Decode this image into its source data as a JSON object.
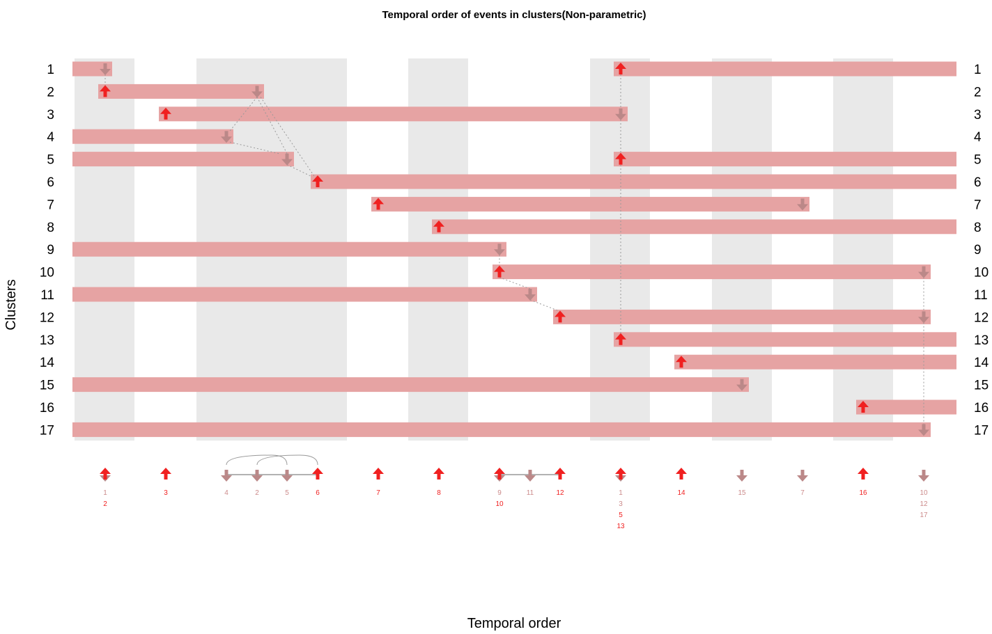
{
  "chart_data": {
    "type": "timeline",
    "title": "Temporal order of events in clusters(Non-parametric)",
    "xlabel": "Temporal order",
    "ylabel": "Clusters",
    "clusters": [
      "1",
      "2",
      "3",
      "4",
      "5",
      "6",
      "7",
      "8",
      "9",
      "10",
      "11",
      "12",
      "13",
      "14",
      "15",
      "16",
      "17"
    ],
    "columns": 15,
    "clusters_detail": [
      {
        "cluster": "1",
        "start": null,
        "end": 1,
        "start_col": 10,
        "end_col": null
      },
      {
        "cluster": "2",
        "start": 1,
        "end": 3,
        "start_col": 1,
        "end_col": 3
      },
      {
        "cluster": "3",
        "start": 2,
        "end": 10,
        "start_col": 2,
        "end_col": 10
      },
      {
        "cluster": "4",
        "start": null,
        "end": 3,
        "start_col": null,
        "end_col": 3
      },
      {
        "cluster": "5",
        "start": null,
        "end": 3,
        "start_col": 10,
        "end_col": null
      },
      {
        "cluster": "6",
        "start": 3,
        "end": null,
        "start_col": 3,
        "end_col": null
      },
      {
        "cluster": "7",
        "start": 4,
        "end": 13,
        "start_col": 4,
        "end_col": 13
      },
      {
        "cluster": "8",
        "start": 5,
        "end": null,
        "start_col": 5,
        "end_col": null
      },
      {
        "cluster": "9",
        "start": null,
        "end": 6,
        "start_col": null,
        "end_col": 6
      },
      {
        "cluster": "10",
        "start": 6,
        "end": 15,
        "start_col": 6,
        "end_col": 15
      },
      {
        "cluster": "11",
        "start": null,
        "end": 6,
        "start_col": null,
        "end_col": 6
      },
      {
        "cluster": "12",
        "start": 6,
        "end": 15,
        "start_col": 6,
        "end_col": 15
      },
      {
        "cluster": "13",
        "start": 7,
        "end": null,
        "start_col": 7,
        "end_col": null
      },
      {
        "cluster": "14",
        "start": 8,
        "end": null,
        "start_col": 8,
        "end_col": null
      },
      {
        "cluster": "15",
        "start": null,
        "end": 12,
        "start_col": null,
        "end_col": 12
      },
      {
        "cluster": "16",
        "start": 13,
        "end": null,
        "start_col": 13,
        "end_col": null
      },
      {
        "cluster": "17",
        "start": null,
        "end": 15,
        "start_col": null,
        "end_col": 15
      }
    ],
    "bottom_events": [
      {
        "col": 0,
        "up": true,
        "down": true,
        "labels": [
          {
            "t": "1",
            "c": "down"
          },
          {
            "t": "2",
            "c": "up"
          }
        ]
      },
      {
        "col": 1,
        "up": true,
        "down": false,
        "labels": [
          {
            "t": "3",
            "c": "up"
          }
        ]
      },
      {
        "col": 2,
        "up": false,
        "down": true,
        "labels": [
          {
            "t": "4",
            "c": "down"
          }
        ]
      },
      {
        "col": 2.5,
        "up": false,
        "down": true,
        "labels": [
          {
            "t": "2",
            "c": "down"
          }
        ]
      },
      {
        "col": 3,
        "up": false,
        "down": true,
        "labels": [
          {
            "t": "5",
            "c": "down"
          }
        ]
      },
      {
        "col": 3.5,
        "up": true,
        "down": false,
        "labels": [
          {
            "t": "6",
            "c": "up"
          }
        ]
      },
      {
        "col": 4.5,
        "up": true,
        "down": false,
        "labels": [
          {
            "t": "7",
            "c": "up"
          }
        ]
      },
      {
        "col": 5.5,
        "up": true,
        "down": false,
        "labels": [
          {
            "t": "8",
            "c": "up"
          }
        ]
      },
      {
        "col": 6.5,
        "up": true,
        "down": true,
        "labels": [
          {
            "t": "9",
            "c": "down"
          },
          {
            "t": "10",
            "c": "up"
          }
        ]
      },
      {
        "col": 7,
        "up": false,
        "down": true,
        "labels": [
          {
            "t": "11",
            "c": "down"
          }
        ]
      },
      {
        "col": 7.5,
        "up": true,
        "down": false,
        "labels": [
          {
            "t": "12",
            "c": "up"
          }
        ]
      },
      {
        "col": 8.5,
        "up": true,
        "down": true,
        "labels": [
          {
            "t": "1",
            "c": "down"
          },
          {
            "t": "3",
            "c": "down"
          },
          {
            "t": "5",
            "c": "up"
          },
          {
            "t": "13",
            "c": "up"
          }
        ]
      },
      {
        "col": 9.5,
        "up": true,
        "down": false,
        "labels": [
          {
            "t": "14",
            "c": "up"
          }
        ]
      },
      {
        "col": 10.5,
        "up": false,
        "down": true,
        "labels": [
          {
            "t": "15",
            "c": "down"
          }
        ]
      },
      {
        "col": 11.5,
        "up": false,
        "down": true,
        "labels": [
          {
            "t": "7",
            "c": "down"
          }
        ]
      },
      {
        "col": 12.5,
        "up": true,
        "down": false,
        "labels": [
          {
            "t": "16",
            "c": "up"
          }
        ]
      },
      {
        "col": 13.5,
        "up": false,
        "down": true,
        "labels": [
          {
            "t": "10",
            "c": "down"
          },
          {
            "t": "12",
            "c": "down"
          },
          {
            "t": "17",
            "c": "down"
          }
        ]
      }
    ],
    "colors": {
      "bar": "#e6a3a3",
      "stripe": "#e9e9e9",
      "up_arrow": "#f02020",
      "down_arrow": "#bb8888",
      "link": "#999999"
    }
  }
}
